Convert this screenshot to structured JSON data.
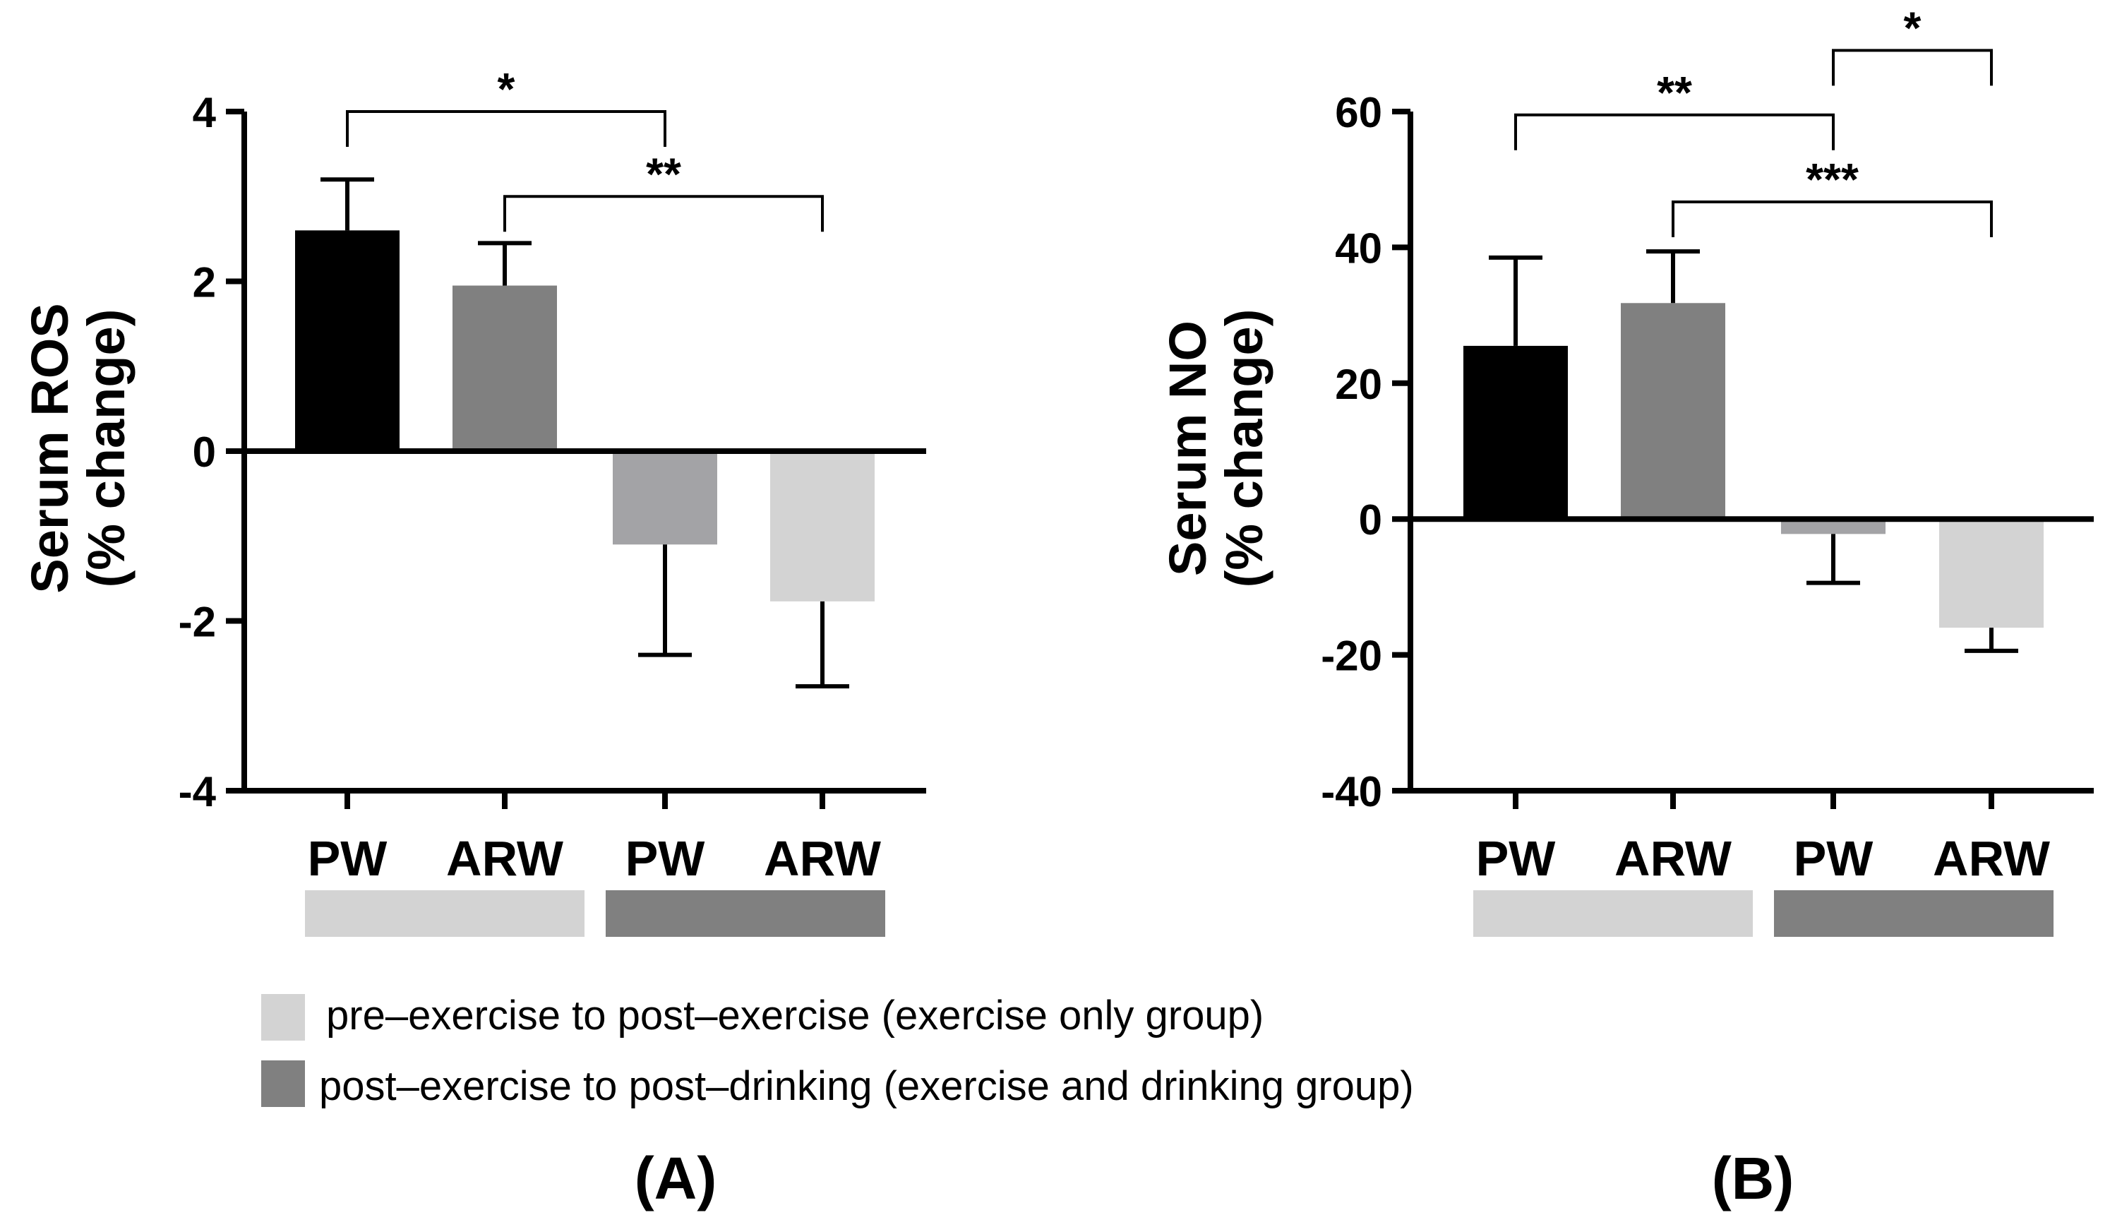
{
  "colors": {
    "axis": "#000000",
    "bar_pw_pre": "#000000",
    "bar_arw_pre": "#808080",
    "bar_pw_post": "#a3a3a6",
    "bar_arw_post": "#d3d3d3",
    "group_pre": "#d3d3d3",
    "group_post": "#808080"
  },
  "legend": {
    "pre_label": "pre–exercise to post–exercise (exercise only group)",
    "post_label": "post–exercise to post–drinking (exercise and drinking group)"
  },
  "chart_data": [
    {
      "type": "bar",
      "panel": "(A)",
      "title": "",
      "ylabel_line1": "Serum ROS",
      "ylabel_line2": "(% change)",
      "xlabel": "",
      "ylim": [
        -4,
        4
      ],
      "yticks": [
        -4,
        -2,
        0,
        2,
        4
      ],
      "tick_labels": [
        "-4",
        "-2",
        "0",
        "2",
        "4"
      ],
      "categories": [
        "PW",
        "ARW",
        "PW",
        "ARW"
      ],
      "groups": [
        "pre–exercise to post–exercise (exercise only group)",
        "pre–exercise to post–exercise (exercise only group)",
        "post–exercise to post–drinking (exercise and drinking group)",
        "post–exercise to post–drinking (exercise and drinking group)"
      ],
      "values": [
        2.6,
        1.95,
        -1.1,
        -1.77
      ],
      "errors": [
        0.6,
        0.5,
        1.3,
        1.0
      ],
      "significance": [
        {
          "from": 0,
          "to": 2,
          "label": "*",
          "level": 4.0
        },
        {
          "from": 1,
          "to": 3,
          "label": "**",
          "level": 3.0
        }
      ]
    },
    {
      "type": "bar",
      "panel": "(B)",
      "title": "",
      "ylabel_line1": "Serum NO",
      "ylabel_line2": "(% change)",
      "xlabel": "",
      "ylim": [
        -40,
        60
      ],
      "yticks": [
        -40,
        -20,
        0,
        20,
        40,
        60
      ],
      "tick_labels": [
        "-40",
        "-20",
        "0",
        "20",
        "40",
        "60"
      ],
      "categories": [
        "PW",
        "ARW",
        "PW",
        "ARW"
      ],
      "groups": [
        "pre–exercise to post–exercise (exercise only group)",
        "pre–exercise to post–exercise (exercise only group)",
        "post–exercise to post–drinking (exercise and drinking group)",
        "post–exercise to post–drinking (exercise and drinking group)"
      ],
      "values": [
        25.5,
        31.8,
        -2.2,
        -16.0
      ],
      "errors": [
        13.0,
        7.6,
        7.2,
        3.4
      ],
      "significance": [
        {
          "from": 0,
          "to": 2,
          "label": "**",
          "level": 59.5
        },
        {
          "from": 2,
          "to": 3,
          "label": "*",
          "level": 69.0
        },
        {
          "from": 1,
          "to": 3,
          "label": "***",
          "level": 46.7
        }
      ]
    }
  ]
}
